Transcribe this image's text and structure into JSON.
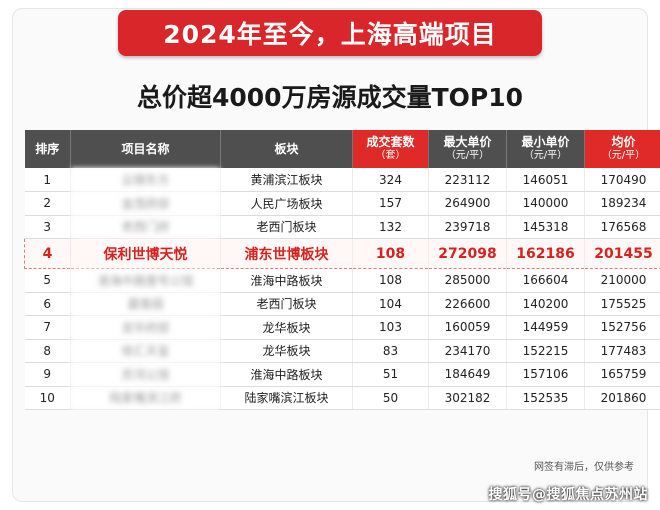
{
  "banner": {
    "title": "2024年至今，上海高端项目"
  },
  "subtitle": "总价超4000万房源成交量TOP10",
  "table": {
    "headers": [
      {
        "label": "排序",
        "sub": ""
      },
      {
        "label": "项目名称",
        "sub": ""
      },
      {
        "label": "板块",
        "sub": ""
      },
      {
        "label": "成交套数",
        "sub": "（套）"
      },
      {
        "label": "最大单价",
        "sub": "（元/平）"
      },
      {
        "label": "最小单价",
        "sub": "（元/平）"
      },
      {
        "label": "均价",
        "sub": "（元/平）"
      }
    ],
    "rows": [
      {
        "rank": "1",
        "name": "云锦东方",
        "area": "黄浦滨江板块",
        "units": "324",
        "max": "223112",
        "min": "146051",
        "avg": "170490"
      },
      {
        "rank": "2",
        "name": "金茂府邸",
        "area": "人民广场板块",
        "units": "157",
        "max": "264900",
        "min": "140000",
        "avg": "189234"
      },
      {
        "rank": "3",
        "name": "老西门府",
        "area": "老西门板块",
        "units": "132",
        "max": "239718",
        "min": "145318",
        "avg": "176568"
      },
      {
        "rank": "4",
        "name": "保利世博天悦",
        "area": "浦东世博板块",
        "units": "108",
        "max": "272098",
        "min": "162186",
        "avg": "201455"
      },
      {
        "rank": "5",
        "name": "淮海中路壹号公馆",
        "area": "淮海中路板块",
        "units": "108",
        "max": "285000",
        "min": "166604",
        "avg": "210000"
      },
      {
        "rank": "6",
        "name": "露香园",
        "area": "老西门板块",
        "units": "104",
        "max": "226600",
        "min": "140200",
        "avg": "175525"
      },
      {
        "rank": "7",
        "name": "龙华府邸",
        "area": "龙华板块",
        "units": "103",
        "max": "160059",
        "min": "144959",
        "avg": "152756"
      },
      {
        "rank": "8",
        "name": "徐汇天玺",
        "area": "龙华板块",
        "units": "83",
        "max": "234170",
        "min": "152215",
        "avg": "177483"
      },
      {
        "rank": "9",
        "name": "苏河公馆",
        "area": "淮海中路板块",
        "units": "51",
        "max": "184649",
        "min": "157106",
        "avg": "165759"
      },
      {
        "rank": "10",
        "name": "陆家嘴滨江府",
        "area": "陆家嘴滨江板块",
        "units": "50",
        "max": "302182",
        "min": "152535",
        "avg": "201860"
      }
    ]
  },
  "note": "网签有滞后，仅供参考",
  "watermark": "搜狐号@搜狐焦点苏州站",
  "colors": {
    "accent": "#d8262b",
    "header": "#4f4f4f",
    "highlight_text": "#d7221f"
  }
}
